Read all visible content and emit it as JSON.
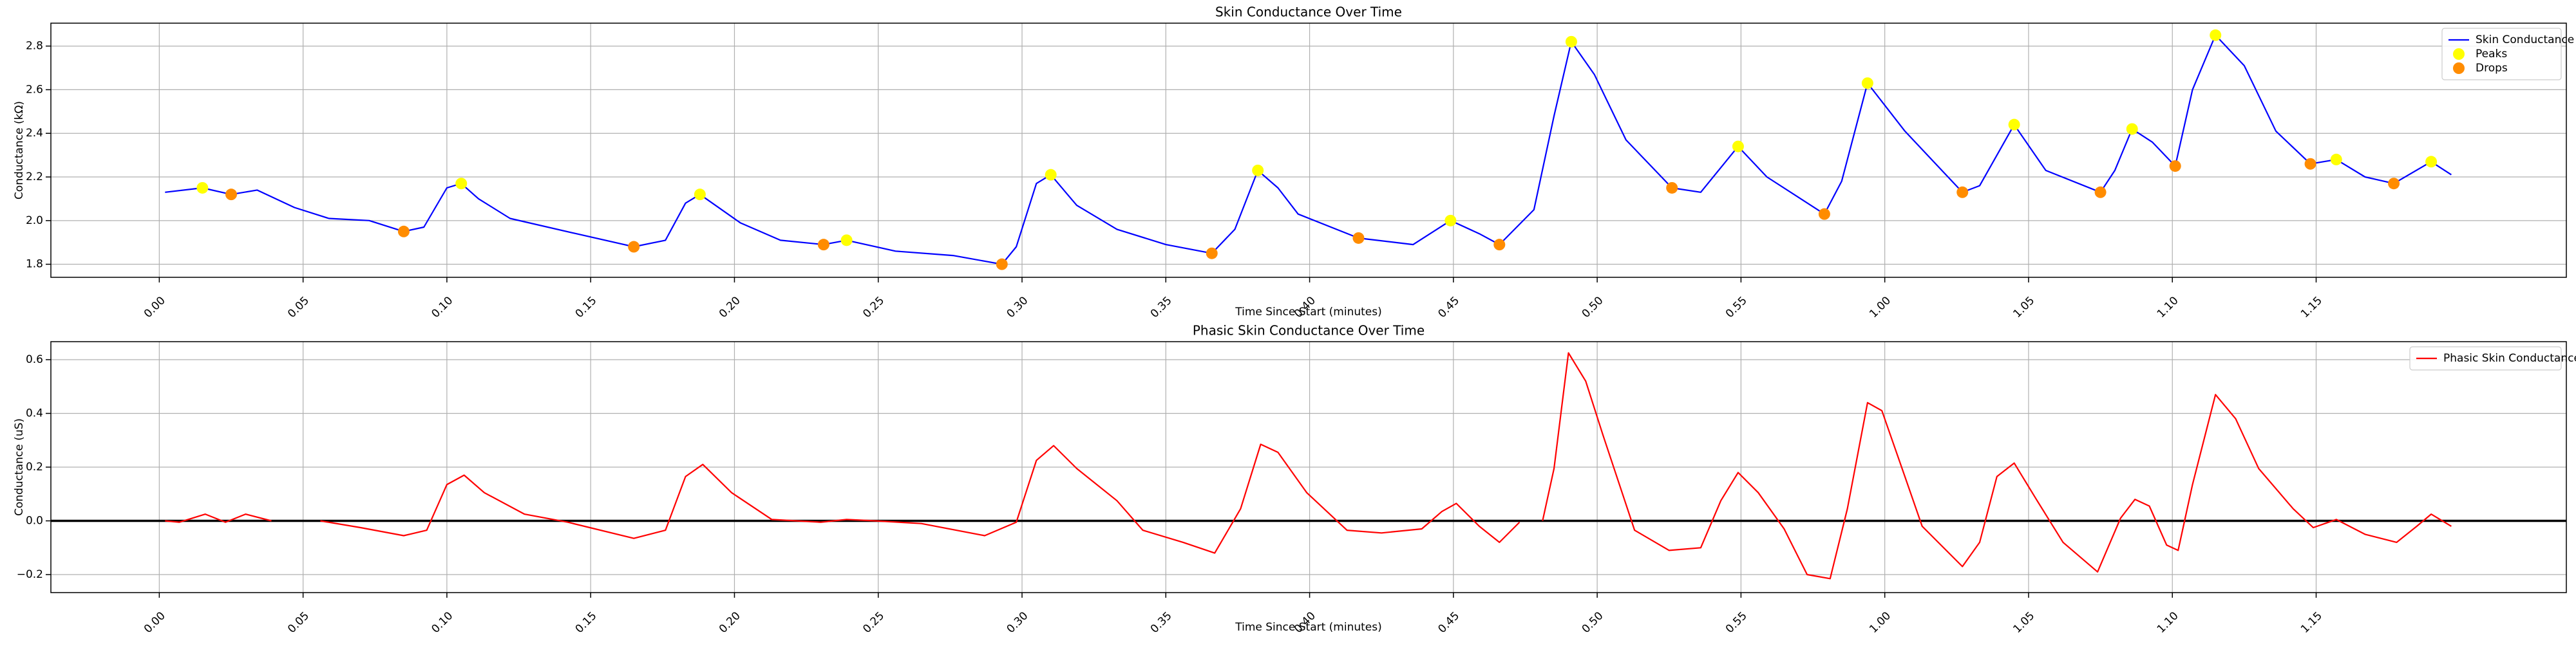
{
  "chart_data": [
    {
      "type": "line",
      "title": "Skin Conductance Over Time",
      "xlabel": "Time Since Start (minutes)",
      "ylabel": "Conductance (kΩ)",
      "xlim": [
        -3.77,
        83.7
      ],
      "ylim": [
        1.74,
        2.905
      ],
      "xticks": [
        {
          "value": 0,
          "label": "0.00"
        },
        {
          "value": 5,
          "label": "0.05"
        },
        {
          "value": 10,
          "label": "0.10"
        },
        {
          "value": 15,
          "label": "0.15"
        },
        {
          "value": 20,
          "label": "0.20"
        },
        {
          "value": 25,
          "label": "0.25"
        },
        {
          "value": 30,
          "label": "0.30"
        },
        {
          "value": 35,
          "label": "0.35"
        },
        {
          "value": 40,
          "label": "0.40"
        },
        {
          "value": 45,
          "label": "0.45"
        },
        {
          "value": 50,
          "label": "0.50"
        },
        {
          "value": 55,
          "label": "0.55"
        },
        {
          "value": 60,
          "label": "1.00"
        },
        {
          "value": 65,
          "label": "1.05"
        },
        {
          "value": 70,
          "label": "1.10"
        },
        {
          "value": 75,
          "label": "1.15"
        }
      ],
      "yticks": [
        1.8,
        {
          "value": 2.0,
          "label": "2.0"
        },
        2.2,
        2.4,
        2.6,
        2.8
      ],
      "grid": true,
      "legend": "upper right",
      "series": [
        {
          "name": "Skin Conductance",
          "type": "line",
          "color": "#0000ff",
          "x": [
            0.2,
            1.5,
            2.5,
            3.4,
            4.7,
            5.9,
            7.3,
            8.5,
            9.2,
            10.0,
            10.5,
            11.1,
            12.2,
            14.5,
            16.5,
            17.6,
            18.3,
            18.8,
            20.2,
            21.6,
            23.1,
            23.9,
            25.6,
            27.6,
            29.3,
            29.8,
            30.5,
            31.0,
            31.9,
            33.3,
            35.0,
            36.6,
            37.4,
            38.2,
            38.9,
            39.6,
            41.7,
            43.6,
            44.9,
            45.9,
            46.6,
            47.8,
            48.5,
            49.1,
            49.9,
            51.0,
            52.6,
            53.6,
            54.9,
            55.9,
            57.9,
            58.5,
            59.4,
            60.7,
            62.7,
            63.3,
            64.5,
            65.6,
            67.5,
            68.0,
            68.6,
            69.3,
            70.1,
            70.7,
            71.5,
            72.5,
            73.6,
            74.8,
            75.7,
            76.7,
            77.7,
            79.0,
            79.7
          ],
          "values": [
            2.13,
            2.15,
            2.12,
            2.14,
            2.06,
            2.01,
            2.0,
            1.95,
            1.97,
            2.15,
            2.17,
            2.1,
            2.01,
            1.94,
            1.88,
            1.91,
            2.08,
            2.12,
            1.99,
            1.91,
            1.89,
            1.91,
            1.86,
            1.84,
            1.8,
            1.88,
            2.17,
            2.21,
            2.07,
            1.96,
            1.89,
            1.85,
            1.96,
            2.23,
            2.15,
            2.03,
            1.92,
            1.89,
            2.0,
            1.94,
            1.89,
            2.05,
            2.48,
            2.82,
            2.67,
            2.37,
            2.15,
            2.13,
            2.34,
            2.2,
            2.03,
            2.18,
            2.63,
            2.41,
            2.13,
            2.16,
            2.44,
            2.23,
            2.13,
            2.23,
            2.42,
            2.36,
            2.25,
            2.6,
            2.85,
            2.71,
            2.41,
            2.26,
            2.28,
            2.2,
            2.17,
            2.27,
            2.21
          ]
        },
        {
          "name": "Peaks",
          "type": "scatter",
          "color": "#ffff00",
          "x": [
            1.5,
            10.5,
            18.8,
            23.9,
            31.0,
            38.2,
            44.9,
            49.1,
            54.9,
            59.4,
            64.5,
            68.6,
            71.5,
            75.7,
            79.0
          ],
          "values": [
            2.15,
            2.17,
            2.12,
            1.91,
            2.21,
            2.23,
            2.0,
            2.82,
            2.34,
            2.63,
            2.44,
            2.42,
            2.85,
            2.28,
            2.27
          ]
        },
        {
          "name": "Drops",
          "type": "scatter",
          "color": "#ff8c00",
          "x": [
            2.5,
            8.5,
            16.5,
            23.1,
            29.3,
            36.6,
            41.7,
            46.6,
            52.6,
            57.9,
            62.7,
            67.5,
            70.1,
            74.8,
            77.7
          ],
          "values": [
            2.12,
            1.95,
            1.88,
            1.89,
            1.8,
            1.85,
            1.92,
            1.89,
            2.15,
            2.03,
            2.13,
            2.13,
            2.25,
            2.26,
            2.17
          ]
        }
      ]
    },
    {
      "type": "line",
      "title": "Phasic Skin Conductance Over Time",
      "xlabel": "Time Since Start (minutes)",
      "ylabel": "Conductance (uS)",
      "xlim": [
        -3.77,
        83.7
      ],
      "ylim": [
        -0.267,
        0.667
      ],
      "xticks": [
        {
          "value": 0,
          "label": "0.00"
        },
        {
          "value": 5,
          "label": "0.05"
        },
        {
          "value": 10,
          "label": "0.10"
        },
        {
          "value": 15,
          "label": "0.15"
        },
        {
          "value": 20,
          "label": "0.20"
        },
        {
          "value": 25,
          "label": "0.25"
        },
        {
          "value": 30,
          "label": "0.30"
        },
        {
          "value": 35,
          "label": "0.35"
        },
        {
          "value": 40,
          "label": "0.40"
        },
        {
          "value": 45,
          "label": "0.45"
        },
        {
          "value": 50,
          "label": "0.50"
        },
        {
          "value": 55,
          "label": "0.55"
        },
        {
          "value": 60,
          "label": "1.00"
        },
        {
          "value": 65,
          "label": "1.05"
        },
        {
          "value": 70,
          "label": "1.10"
        },
        {
          "value": 75,
          "label": "1.15"
        }
      ],
      "yticks": [
        {
          "value": -0.2,
          "label": "−0.2"
        },
        {
          "value": 0,
          "label": "0.0"
        },
        0.2,
        0.4,
        0.6
      ],
      "grid": true,
      "legend": "upper right",
      "axhline": 0,
      "axhline_color": "#000000",
      "series": [
        {
          "name": "Phasic Skin Conductance",
          "type": "line",
          "color": "#ff0000",
          "x": [
            0.2,
            0.7,
            1.6,
            2.3,
            3.0,
            3.9,
            null,
            5.6,
            7.0,
            8.5,
            9.3,
            10.0,
            10.6,
            11.3,
            12.7,
            14.2,
            16.5,
            17.6,
            18.3,
            18.9,
            19.9,
            21.3,
            23.0,
            23.9,
            24.9,
            26.5,
            28.7,
            29.8,
            30.5,
            31.1,
            31.9,
            33.3,
            34.2,
            35.6,
            36.7,
            37.6,
            38.3,
            38.9,
            39.9,
            41.3,
            42.5,
            43.9,
            44.6,
            45.1,
            45.9,
            46.6,
            47.3,
            null,
            48.1,
            48.5,
            49.0,
            49.6,
            50.2,
            51.3,
            52.5,
            53.6,
            54.3,
            54.9,
            55.6,
            56.5,
            57.3,
            58.1,
            58.7,
            59.4,
            59.9,
            60.7,
            61.3,
            62.7,
            63.3,
            63.9,
            64.5,
            65.3,
            66.2,
            67.4,
            68.2,
            68.7,
            69.2,
            69.8,
            70.2,
            70.7,
            71.5,
            72.2,
            73.0,
            74.2,
            74.9,
            75.7,
            76.7,
            77.8,
            78.5,
            79.0,
            79.7
          ],
          "values": [
            0,
            -0.005,
            0.025,
            -0.005,
            0.025,
            0,
            null,
            0,
            -0.025,
            -0.055,
            -0.035,
            0.135,
            0.17,
            0.105,
            0.025,
            -0.005,
            -0.065,
            -0.035,
            0.165,
            0.21,
            0.105,
            0.005,
            -0.005,
            0.005,
            0,
            -0.01,
            -0.055,
            -0.005,
            0.225,
            0.28,
            0.195,
            0.075,
            -0.035,
            -0.08,
            -0.12,
            0.045,
            0.285,
            0.255,
            0.105,
            -0.035,
            -0.045,
            -0.03,
            0.035,
            0.065,
            -0.02,
            -0.08,
            -0.005,
            null,
            0,
            0.195,
            0.625,
            0.52,
            0.32,
            -0.035,
            -0.11,
            -0.1,
            0.075,
            0.18,
            0.105,
            -0.03,
            -0.2,
            -0.215,
            0.045,
            0.44,
            0.41,
            0.165,
            -0.02,
            -0.17,
            -0.08,
            0.165,
            0.215,
            0.075,
            -0.08,
            -0.19,
            0.01,
            0.08,
            0.055,
            -0.09,
            -0.11,
            0.135,
            0.47,
            0.38,
            0.195,
            0.045,
            -0.025,
            0.005,
            -0.05,
            -0.08,
            -0.02,
            0.025,
            -0.02
          ]
        }
      ]
    }
  ]
}
